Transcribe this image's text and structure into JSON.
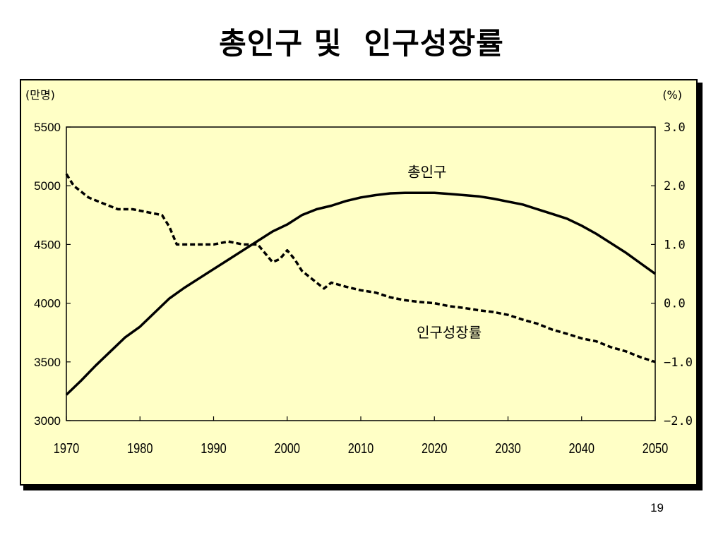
{
  "title": "총인구 및  인구성장률",
  "page_number": "19",
  "chart_data": {
    "type": "line",
    "left_axis_unit": "(만명)",
    "right_axis_unit": "(%)",
    "x_ticks": [
      "1970",
      "1980",
      "1990",
      "2000",
      "2010",
      "2020",
      "2030",
      "2040",
      "2050"
    ],
    "y_left_ticks": [
      "3000",
      "3500",
      "4000",
      "4500",
      "5000",
      "5500"
    ],
    "y_right_ticks": [
      "-2.0",
      "-1.0",
      "0.0",
      "1.0",
      "2.0",
      "3.0"
    ],
    "xlim": [
      1970,
      2050
    ],
    "ylim_left": [
      3000,
      5500
    ],
    "ylim_right": [
      -2.0,
      3.0
    ],
    "grid": false,
    "series": [
      {
        "name": "총인구",
        "axis": "left",
        "style": "solid",
        "x": [
          1970,
          1972,
          1974,
          1976,
          1978,
          1980,
          1982,
          1984,
          1986,
          1988,
          1990,
          1992,
          1994,
          1996,
          1998,
          2000,
          2002,
          2004,
          2006,
          2008,
          2010,
          2012,
          2014,
          2016,
          2018,
          2020,
          2022,
          2024,
          2026,
          2028,
          2030,
          2032,
          2034,
          2036,
          2038,
          2040,
          2042,
          2044,
          2046,
          2048,
          2050
        ],
        "y": [
          3220,
          3340,
          3470,
          3590,
          3710,
          3800,
          3920,
          4040,
          4130,
          4210,
          4290,
          4370,
          4450,
          4530,
          4610,
          4670,
          4750,
          4800,
          4830,
          4870,
          4900,
          4920,
          4935,
          4940,
          4940,
          4940,
          4930,
          4920,
          4910,
          4890,
          4865,
          4840,
          4800,
          4760,
          4720,
          4660,
          4590,
          4510,
          4430,
          4340,
          4250
        ]
      },
      {
        "name": "인구성장률",
        "axis": "right",
        "style": "dashed",
        "x": [
          1970,
          1971,
          1973,
          1975,
          1977,
          1979,
          1981,
          1983,
          1984,
          1985,
          1988,
          1990,
          1992,
          1994,
          1996,
          1997,
          1998,
          1999,
          2000,
          2001,
          2002,
          2003,
          2004,
          2005,
          2006,
          2008,
          2010,
          2012,
          2014,
          2016,
          2018,
          2020,
          2022,
          2024,
          2026,
          2028,
          2030,
          2032,
          2034,
          2036,
          2038,
          2040,
          2042,
          2044,
          2046,
          2048,
          2050
        ],
        "y": [
          2.2,
          2.0,
          1.8,
          1.7,
          1.6,
          1.6,
          1.55,
          1.5,
          1.3,
          1.0,
          1.0,
          1.0,
          1.05,
          1.0,
          1.0,
          0.85,
          0.7,
          0.75,
          0.9,
          0.75,
          0.55,
          0.45,
          0.35,
          0.25,
          0.35,
          0.28,
          0.22,
          0.18,
          0.1,
          0.05,
          0.02,
          0.0,
          -0.05,
          -0.08,
          -0.12,
          -0.15,
          -0.2,
          -0.28,
          -0.35,
          -0.45,
          -0.52,
          -0.6,
          -0.65,
          -0.75,
          -0.82,
          -0.92,
          -1.0
        ]
      }
    ],
    "annotations": [
      {
        "text": "총인구",
        "series": "총인구",
        "x": 2019,
        "y_right": 2.15
      },
      {
        "text": "인구성장률",
        "series": "인구성장률",
        "x": 2022,
        "y_right": -0.58
      }
    ]
  }
}
